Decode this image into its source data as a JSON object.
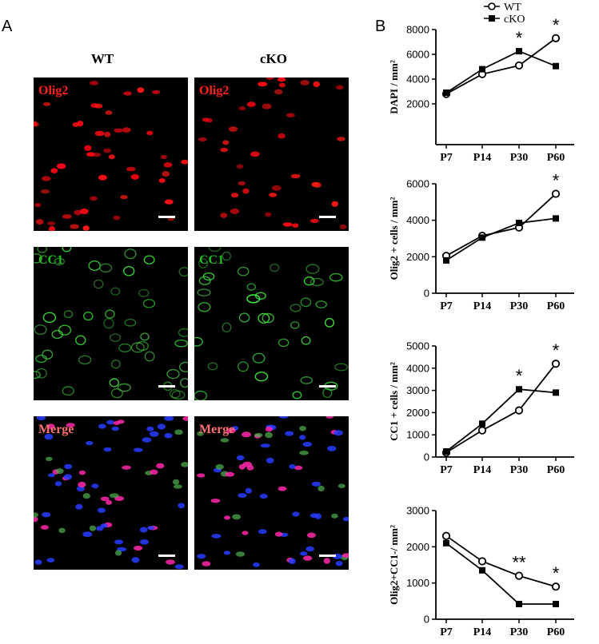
{
  "panel_a": {
    "letter": "A",
    "columns": [
      "WT",
      "cKO"
    ],
    "rows": [
      {
        "label": "Olig2",
        "label_color": "#ff2020",
        "stain": "olig2"
      },
      {
        "label": "CC1",
        "label_color": "#22bb22",
        "stain": "cc1"
      },
      {
        "label": "Merge",
        "label_color": "#ff7070",
        "stain": "merge"
      }
    ]
  },
  "panel_b": {
    "letter": "B",
    "legend": [
      {
        "name": "WT",
        "marker": "open-circle"
      },
      {
        "name": "cKO",
        "marker": "filled-square"
      }
    ]
  },
  "chart_data": [
    {
      "type": "line",
      "ylabel": "DAPI / mm²",
      "categories": [
        "P7",
        "P14",
        "P30",
        "P60"
      ],
      "ylim": [
        0,
        8000
      ],
      "yticks": [
        2000,
        4000,
        6000,
        8000
      ],
      "yticklabels": [
        "2000",
        "4000",
        "6000",
        "8000"
      ],
      "series": [
        {
          "name": "WT",
          "values": [
            2800,
            4400,
            5100,
            7300
          ]
        },
        {
          "name": "cKO",
          "values": [
            2900,
            4800,
            6250,
            5050
          ]
        }
      ],
      "annotations": [
        {
          "x": "P30",
          "text": "*"
        },
        {
          "x": "P60",
          "text": "*"
        }
      ]
    },
    {
      "type": "line",
      "ylabel": "Olig2 + cells / mm²",
      "categories": [
        "P7",
        "P14",
        "P30",
        "P60"
      ],
      "ylim": [
        0,
        6000
      ],
      "yticks": [
        0,
        2000,
        4000,
        6000
      ],
      "yticklabels": [
        "0",
        "2000",
        "4000",
        "6000"
      ],
      "series": [
        {
          "name": "WT",
          "values": [
            2050,
            3150,
            3600,
            5450
          ]
        },
        {
          "name": "cKO",
          "values": [
            1800,
            3050,
            3850,
            4100
          ]
        }
      ],
      "annotations": [
        {
          "x": "P60",
          "text": "*"
        }
      ]
    },
    {
      "type": "line",
      "ylabel": "CC1 + cells / mm²",
      "categories": [
        "P7",
        "P14",
        "P30",
        "P60"
      ],
      "ylim": [
        0,
        5000
      ],
      "yticks": [
        0,
        1000,
        2000,
        3000,
        4000,
        5000
      ],
      "yticklabels": [
        "0",
        "1000",
        "2000",
        "3000",
        "4000",
        "5000"
      ],
      "series": [
        {
          "name": "WT",
          "values": [
            200,
            1200,
            2100,
            4200
          ]
        },
        {
          "name": "cKO",
          "values": [
            250,
            1500,
            3050,
            2900
          ]
        }
      ],
      "annotations": [
        {
          "x": "P30",
          "text": "*"
        },
        {
          "x": "P60",
          "text": "*"
        }
      ]
    },
    {
      "type": "line",
      "ylabel": "Olig2+CC1-/ mm²",
      "categories": [
        "P7",
        "P14",
        "P30",
        "P60"
      ],
      "ylim": [
        0,
        3000
      ],
      "yticks": [
        0,
        1000,
        2000,
        3000
      ],
      "yticklabels": [
        "0",
        "1000",
        "2000",
        "3000"
      ],
      "series": [
        {
          "name": "WT",
          "values": [
            2300,
            1600,
            1200,
            900
          ]
        },
        {
          "name": "cKO",
          "values": [
            2100,
            1350,
            420,
            420
          ]
        }
      ],
      "annotations": [
        {
          "x": "P30",
          "text": "**"
        },
        {
          "x": "P60",
          "text": "*"
        }
      ]
    }
  ]
}
